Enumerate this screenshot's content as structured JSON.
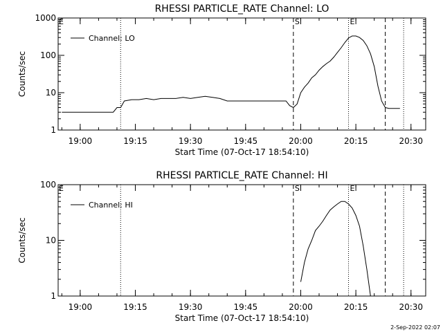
{
  "footer_date": "2-Sep-2022 02:07",
  "chart_data": [
    {
      "type": "line",
      "title": "RHESSI PARTICLE_RATE Channel: LO",
      "xlabel": "Start Time (07-Oct-17 18:54:10)",
      "ylabel": "Counts/sec",
      "yscale": "log",
      "ylim": [
        1,
        1000
      ],
      "yticks": [
        1,
        10,
        100,
        1000
      ],
      "ytick_labels": [
        "1",
        "10",
        "100",
        "1000"
      ],
      "xlim": [
        "18:54",
        "20:34"
      ],
      "xticks": [
        "19:00",
        "19:15",
        "19:30",
        "19:45",
        "20:00",
        "20:15",
        "20:30"
      ],
      "legend": {
        "label": "Channel: LO",
        "position": "top-left"
      },
      "markers": [
        {
          "time": "19:11",
          "style": "dotted",
          "label": ""
        },
        {
          "time": "19:58",
          "style": "dashed",
          "label": "S"
        },
        {
          "time": "20:13",
          "style": "dotted",
          "label": "E"
        },
        {
          "time": "20:23",
          "style": "dashed",
          "label": ""
        },
        {
          "time": "20:28",
          "style": "dotted",
          "label": ""
        }
      ],
      "corner_label": "E",
      "series": [
        {
          "x": [
            "18:55",
            "18:56",
            "18:57",
            "18:58",
            "18:59",
            "19:00",
            "19:01",
            "19:02",
            "19:03",
            "19:04",
            "19:05",
            "19:06",
            "19:07",
            "19:08",
            "19:09",
            "19:10",
            "19:11",
            "19:12",
            "19:14",
            "19:16",
            "19:18",
            "19:20",
            "19:22",
            "19:24",
            "19:26",
            "19:28",
            "19:30",
            "19:32",
            "19:34",
            "19:36",
            "19:38",
            "19:40",
            "19:42",
            "19:44",
            "19:46",
            "19:48",
            "19:50",
            "19:52",
            "19:54",
            "19:56",
            "19:57",
            "19:58",
            "19:59",
            "20:00",
            "20:01",
            "20:02",
            "20:03",
            "20:04",
            "20:05",
            "20:06",
            "20:07",
            "20:08",
            "20:09",
            "20:10",
            "20:11",
            "20:12",
            "20:13",
            "20:14",
            "20:15",
            "20:16",
            "20:17",
            "20:18",
            "20:19",
            "20:20",
            "20:21",
            "20:22",
            "20:23",
            "20:24",
            "20:25",
            "20:26",
            "20:27"
          ],
          "y": [
            3,
            3,
            3,
            3,
            3,
            3,
            3,
            3,
            3,
            3,
            3,
            3,
            3,
            3,
            3,
            4,
            4,
            6,
            6.5,
            6.5,
            7,
            6.5,
            7,
            7,
            7,
            7.5,
            7,
            7.5,
            8,
            7.5,
            7,
            6,
            6,
            6,
            6,
            6,
            6,
            6,
            6,
            6,
            4.5,
            4,
            5,
            10,
            14,
            18,
            25,
            30,
            40,
            50,
            60,
            70,
            90,
            120,
            160,
            220,
            290,
            330,
            330,
            300,
            250,
            180,
            110,
            50,
            15,
            6,
            4,
            3.8,
            3.8,
            3.8,
            3.8
          ]
        }
      ]
    },
    {
      "type": "line",
      "title": "RHESSI PARTICLE_RATE Channel: HI",
      "xlabel": "Start Time (07-Oct-17 18:54:10)",
      "ylabel": "Counts/sec",
      "yscale": "log",
      "ylim": [
        1,
        100
      ],
      "yticks": [
        1,
        10,
        100
      ],
      "ytick_labels": [
        "1",
        "10",
        "100"
      ],
      "xlim": [
        "18:54",
        "20:34"
      ],
      "xticks": [
        "19:00",
        "19:15",
        "19:30",
        "19:45",
        "20:00",
        "20:15",
        "20:30"
      ],
      "legend": {
        "label": "Channel: HI",
        "position": "top-left"
      },
      "markers": [
        {
          "time": "19:11",
          "style": "dotted",
          "label": ""
        },
        {
          "time": "19:58",
          "style": "dashed",
          "label": "S"
        },
        {
          "time": "20:13",
          "style": "dotted",
          "label": "E"
        },
        {
          "time": "20:23",
          "style": "dashed",
          "label": ""
        },
        {
          "time": "20:28",
          "style": "dotted",
          "label": ""
        }
      ],
      "corner_label": "E",
      "series": [
        {
          "x": [
            "20:00",
            "20:01",
            "20:02",
            "20:03",
            "20:04",
            "20:05",
            "20:06",
            "20:07",
            "20:08",
            "20:09",
            "20:10",
            "20:11",
            "20:12",
            "20:13",
            "20:14",
            "20:15",
            "20:16",
            "20:17",
            "20:18",
            "20:19"
          ],
          "y": [
            1.8,
            4,
            7,
            10,
            15,
            18,
            22,
            28,
            35,
            40,
            45,
            50,
            50,
            45,
            38,
            28,
            18,
            8,
            3,
            1
          ]
        }
      ]
    }
  ]
}
